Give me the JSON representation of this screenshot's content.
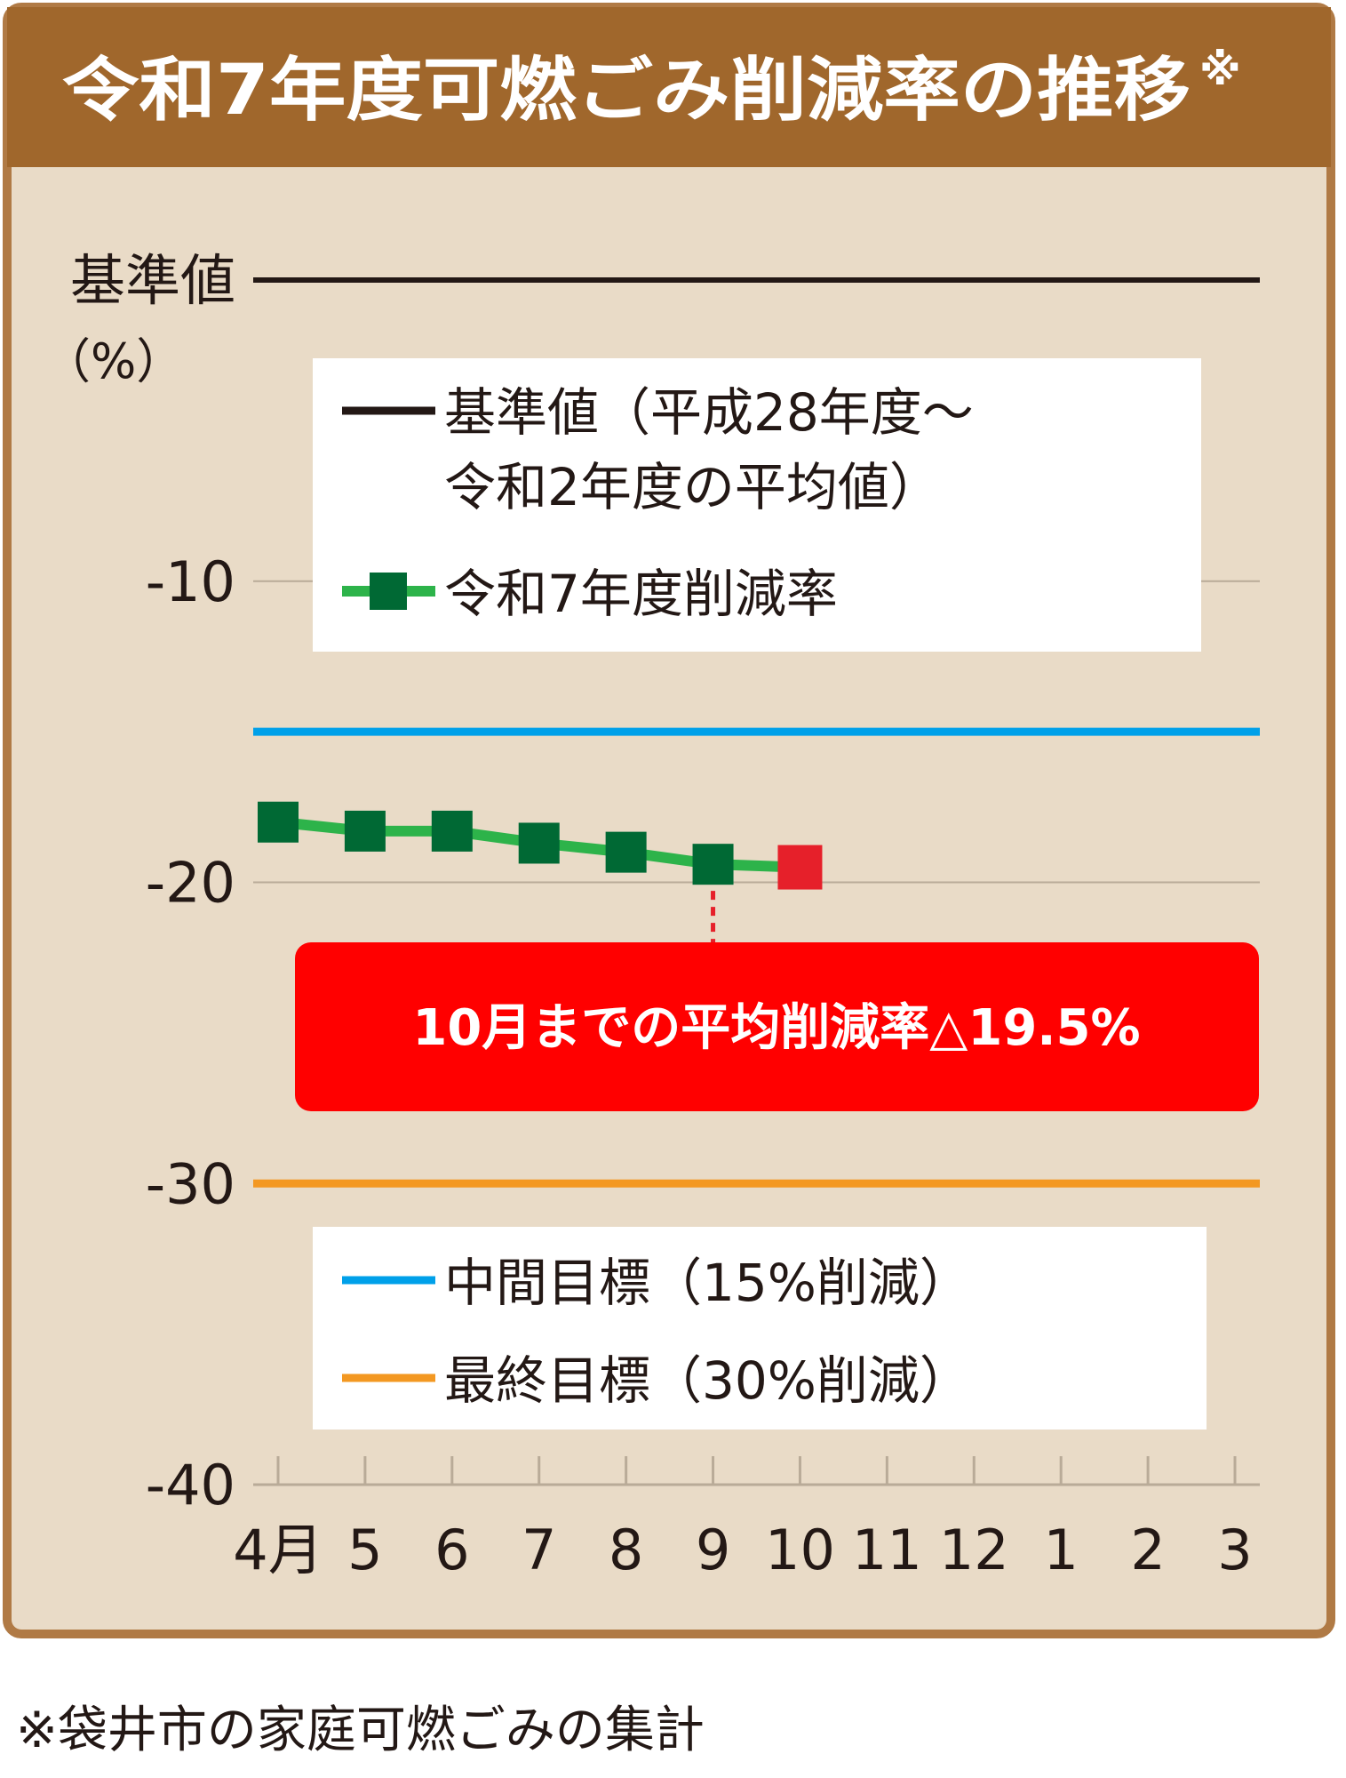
{
  "title": "令和7年度可燃ごみ削減率の推移",
  "title_mark": "※",
  "footnote": "※袋井市の家庭可燃ごみの集計",
  "colors": {
    "title_bar": "#a0672c",
    "panel_bg": "#e9dbc7",
    "panel_border": "#b07a45",
    "baseline": "#231815",
    "series_line": "#2db34a",
    "series_marker": "#006934",
    "last_marker": "#e6202a",
    "midterm_target": "#00a0e9",
    "final_target": "#f39822",
    "callout_bg": "#ff0000",
    "callout_text": "#ffffff",
    "gridline": "#b9ab98"
  },
  "chart_data": {
    "type": "line",
    "categories": [
      "4月",
      "5",
      "6",
      "7",
      "8",
      "9",
      "10",
      "11",
      "12",
      "1",
      "2",
      "3"
    ],
    "series": [
      {
        "name": "令和7年度削減率",
        "values": [
          -18.0,
          -18.3,
          -18.3,
          -18.7,
          -19.0,
          -19.4,
          -19.5,
          null,
          null,
          null,
          null,
          null
        ]
      }
    ],
    "reference_lines": [
      {
        "name": "基準値（平成28年度～令和2年度の平均値）",
        "value": 0
      },
      {
        "name": "中間目標（15%削減）",
        "value": -15
      },
      {
        "name": "最終目標（30%削減）",
        "value": -30
      }
    ],
    "y_ticks": [
      "基準値",
      "-10",
      "-20",
      "-30",
      "-40"
    ],
    "y_unit": "（%）",
    "ylim": [
      -40,
      0
    ],
    "grid": true,
    "legend": {
      "baseline_line1": "基準値（平成28年度～",
      "baseline_line2": "令和2年度の平均値）",
      "series": "令和7年度削減率",
      "midterm": "中間目標（15%削減）",
      "final": "最終目標（30%削減）"
    },
    "annotation": "10月までの平均削減率△19.5%"
  }
}
